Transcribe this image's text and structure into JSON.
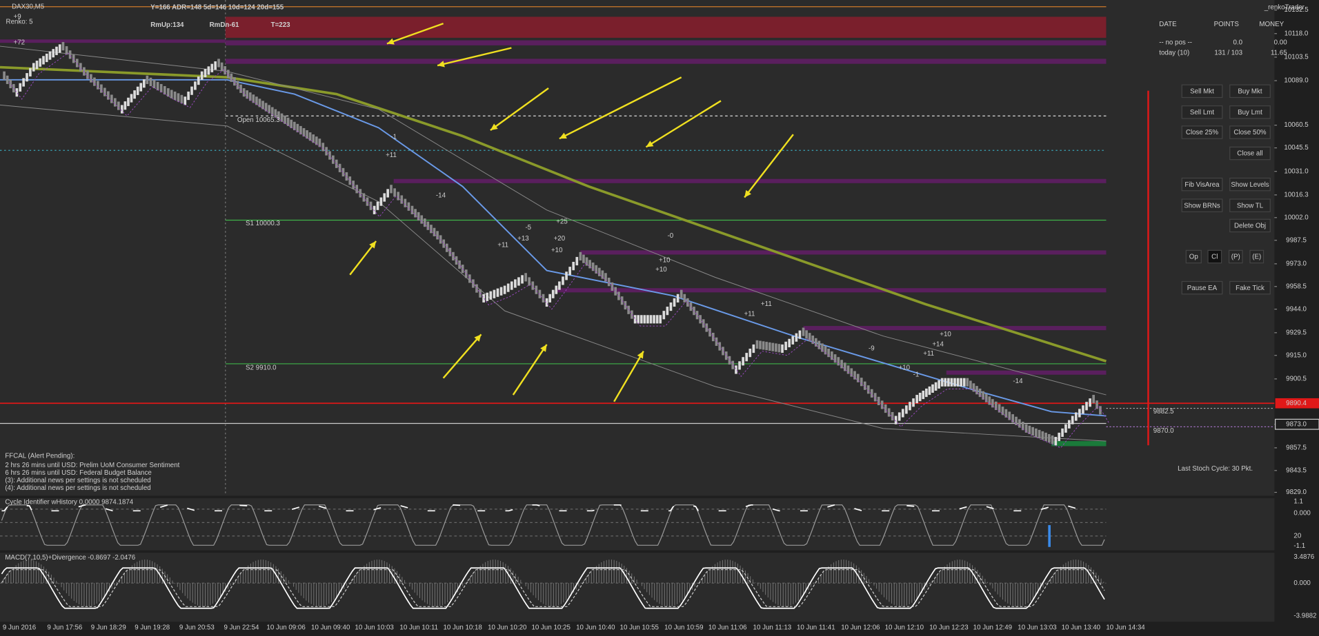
{
  "header": {
    "symbol": "DAX30,M5",
    "stats": "Y=166  ADR=148  5d=146  10d=124  20d=155",
    "renko": "Renko: 5",
    "rm_up": "RmUp:134",
    "rm_dn": "RmDn-61",
    "total": "T=223",
    "plus72": "+72",
    "plus9": "+9"
  },
  "trade_panel": {
    "brand": "_renkoTrader",
    "columns": [
      "DATE",
      "POINTS",
      "MONEY"
    ],
    "rows": [
      [
        "-- no pos --",
        "0.0",
        "0.00"
      ],
      [
        "today (10)",
        "131 / 103",
        "11.65"
      ]
    ]
  },
  "buttons": [
    "Sell Mkt",
    "Buy Mkt",
    "Sell Lmt",
    "Buy Lmt",
    "Close 25%",
    "Close 50%",
    "Close all",
    "Fib VisArea",
    "Show Levels",
    "Show BRNs",
    "Show TL",
    "Delete Obj",
    "Op",
    "Cl",
    "(P)",
    "(E)",
    "Pause EA",
    "Fake Tick"
  ],
  "price_axis": [
    "10132.5",
    "10118.0",
    "10103.5",
    "10089.0",
    "10060.5",
    "10045.5",
    "10031.0",
    "10016.3",
    "10002.0",
    "9987.5",
    "9973.0",
    "9958.5",
    "9944.0",
    "9929.5",
    "9915.0",
    "9900.5",
    "9873.0",
    "9857.5",
    "9843.5",
    "9829.0"
  ],
  "price_tags": {
    "current": "9890.4",
    "upper": "9882.5",
    "lower": "9870.0"
  },
  "levels": {
    "open": "Open  10065.3",
    "s1": "S1   10000.3",
    "s2": "S2   9910.0"
  },
  "annotations": [
    "-1",
    "+11",
    "-14",
    "-5",
    "+25",
    "+13",
    "+20",
    "+11",
    "+10",
    "-0",
    "+10",
    "+10",
    "+11",
    "+11",
    "-9",
    "+10",
    "+14",
    "+11",
    "+10",
    "-1",
    "-14"
  ],
  "ffcal": {
    "title": "FFCAL  (Alert Pending):",
    "lines": [
      "2 hrs 26 mins until USD: Prelim UoM Consumer Sentiment",
      "6 hrs 26 mins until USD: Federal Budget Balance",
      "(3): Additional news per settings is not scheduled",
      "(4): Additional news per settings is not scheduled"
    ]
  },
  "stoch": "Last Stoch Cycle: 30 Pkt.",
  "cycle": {
    "title": "Cycle Identifier wHistory 0.0000 9874.1874",
    "axis": [
      "1.1",
      "0.000",
      "20",
      "-1.1"
    ]
  },
  "macd": {
    "title": "MACD(7,10,5)+Divergence -0.8697 -2.0476",
    "axis": [
      "3.4876",
      "0.000",
      "-3.9882"
    ]
  },
  "time_axis": [
    "9 Jun 2016",
    "9 Jun 17:56",
    "9 Jun 18:29",
    "9 Jun 19:28",
    "9 Jun 20:53",
    "9 Jun 22:54",
    "10 Jun 09:06",
    "10 Jun 09:40",
    "10 Jun 10:03",
    "10 Jun 10:11",
    "10 Jun 10:18",
    "10 Jun 10:20",
    "10 Jun 10:25",
    "10 Jun 10:40",
    "10 Jun 10:55",
    "10 Jun 10:59",
    "10 Jun 11:06",
    "10 Jun 11:13",
    "10 Jun 11:41",
    "10 Jun 12:06",
    "10 Jun 12:10",
    "10 Jun 12:23",
    "10 Jun 12:49",
    "10 Jun 13:03",
    "10 Jun 13:40",
    "10 Jun 14:34"
  ]
}
